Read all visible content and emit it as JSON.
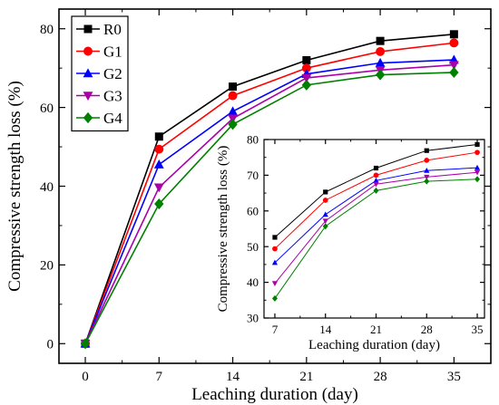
{
  "chart_data": [
    {
      "type": "line",
      "xlabel": "Leaching duration (day)",
      "ylabel": "Compressive strength loss (%)",
      "xlim": [
        -2.5,
        38.5
      ],
      "ylim": [
        -5,
        85
      ],
      "xticks": [
        0,
        7,
        14,
        21,
        28,
        35
      ],
      "yticks": [
        0,
        20,
        40,
        60,
        80
      ],
      "legend": "top-left",
      "grid": false,
      "x": [
        0,
        7,
        14,
        21,
        28,
        35
      ],
      "series": [
        {
          "name": "R0",
          "color": "#000000",
          "marker": "square",
          "values": [
            0,
            52.6,
            65.3,
            72.0,
            76.9,
            78.6
          ]
        },
        {
          "name": "G1",
          "color": "#ff0000",
          "marker": "circle",
          "values": [
            0,
            49.4,
            63.0,
            70.0,
            74.2,
            76.4
          ]
        },
        {
          "name": "G2",
          "color": "#0000ff",
          "marker": "triangle-up",
          "values": [
            0,
            45.5,
            59.0,
            68.5,
            71.3,
            72.1
          ]
        },
        {
          "name": "G3",
          "color": "#aa00aa",
          "marker": "triangle-down",
          "values": [
            0,
            39.7,
            57.2,
            67.5,
            69.5,
            70.8
          ]
        },
        {
          "name": "G4",
          "color": "#008000",
          "marker": "diamond",
          "values": [
            0,
            35.5,
            55.7,
            65.7,
            68.3,
            68.9
          ]
        }
      ]
    },
    {
      "type": "line",
      "inset": true,
      "xlabel": "Leaching duration (day)",
      "ylabel": "Compressive strength loss (%)",
      "xlim": [
        5.5,
        36
      ],
      "ylim": [
        30,
        80
      ],
      "xticks": [
        7,
        14,
        21,
        28,
        35
      ],
      "yticks": [
        30,
        40,
        50,
        60,
        70,
        80
      ],
      "grid": false,
      "x": [
        7,
        14,
        21,
        28,
        35
      ],
      "series": [
        {
          "name": "R0",
          "color": "#000000",
          "marker": "square",
          "values": [
            52.6,
            65.3,
            72.0,
            76.9,
            78.6
          ]
        },
        {
          "name": "G1",
          "color": "#ff0000",
          "marker": "circle",
          "values": [
            49.4,
            63.0,
            70.0,
            74.2,
            76.4
          ]
        },
        {
          "name": "G2",
          "color": "#0000ff",
          "marker": "triangle-up",
          "values": [
            45.5,
            59.0,
            68.5,
            71.3,
            72.1
          ]
        },
        {
          "name": "G3",
          "color": "#aa00aa",
          "marker": "triangle-down",
          "values": [
            39.7,
            57.2,
            67.5,
            69.5,
            70.8
          ]
        },
        {
          "name": "G4",
          "color": "#008000",
          "marker": "diamond",
          "values": [
            35.5,
            55.7,
            65.7,
            68.3,
            68.9
          ]
        }
      ]
    }
  ]
}
